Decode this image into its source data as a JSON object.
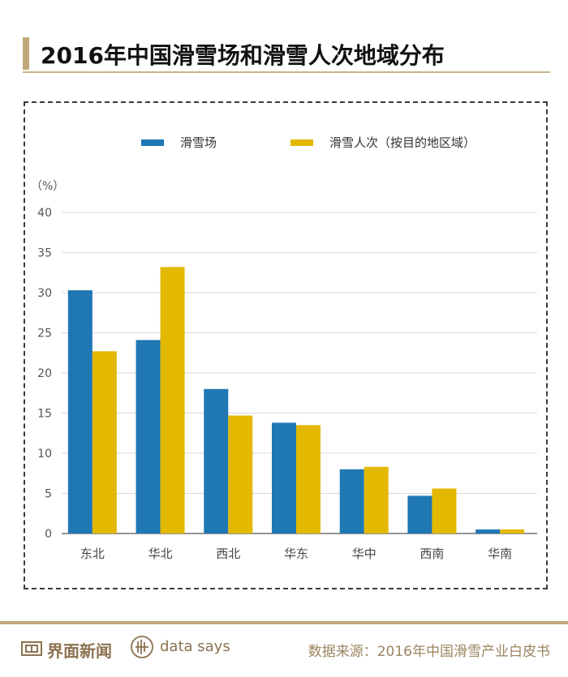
{
  "title": "2016年中国滑雪场和滑雪人次地域分布",
  "unit_label": "（%）",
  "colors": {
    "series1": "#1f77b4",
    "series2": "#e3b800",
    "accent": "#c2a878"
  },
  "chart_data": {
    "type": "bar",
    "categories": [
      "东北",
      "华北",
      "西北",
      "华东",
      "华中",
      "西南",
      "华南"
    ],
    "series": [
      {
        "name": "滑雪场",
        "values": [
          30.3,
          24.1,
          18.0,
          13.8,
          8.0,
          4.7,
          0.5
        ]
      },
      {
        "name": "滑雪人次（按目的地区域）",
        "values": [
          22.7,
          33.2,
          14.7,
          13.5,
          8.3,
          5.6,
          0.5
        ]
      }
    ],
    "ylim": [
      0,
      40
    ],
    "yticks": [
      0,
      5,
      10,
      15,
      20,
      25,
      30,
      35,
      40
    ],
    "grid": true,
    "legend": "top"
  },
  "footer": {
    "brand": "界面新闻",
    "tagline": "data says",
    "source": "数据来源：2016年中国滑雪产业白皮书"
  }
}
